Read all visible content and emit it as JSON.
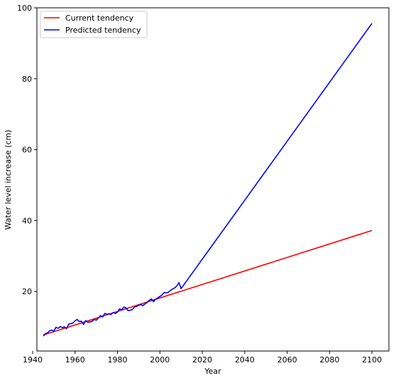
{
  "chart_data": {
    "type": "line",
    "title": "",
    "xlabel": "Year",
    "ylabel": "Water level increase (cm)",
    "xlim": [
      1942,
      2108
    ],
    "ylim": [
      3.2,
      100
    ],
    "xticks": [
      1940,
      1960,
      1980,
      2000,
      2020,
      2040,
      2060,
      2080,
      2100
    ],
    "xtick_labels": [
      "1940",
      "1960",
      "1980",
      "2000",
      "2020",
      "2040",
      "2060",
      "2080",
      "2100"
    ],
    "yticks": [
      20,
      40,
      60,
      80,
      100
    ],
    "ytick_labels": [
      "20",
      "40",
      "60",
      "80",
      "100"
    ],
    "grid": false,
    "legend_position": "top-left",
    "series": [
      {
        "name": "Current tendency",
        "color": "#ff0000",
        "x": [
          1945,
          2100
        ],
        "y": [
          7.7,
          37.2
        ]
      },
      {
        "name": "Predicted tendency",
        "color": "#0000ff",
        "x": [
          1945,
          1946,
          1947,
          1948,
          1949,
          1950,
          1951,
          1952,
          1953,
          1954,
          1955,
          1956,
          1957,
          1958,
          1959,
          1960,
          1961,
          1962,
          1963,
          1964,
          1965,
          1966,
          1967,
          1968,
          1969,
          1970,
          1971,
          1972,
          1973,
          1974,
          1975,
          1976,
          1977,
          1978,
          1979,
          1980,
          1981,
          1982,
          1983,
          1984,
          1985,
          1986,
          1987,
          1988,
          1989,
          1990,
          1991,
          1992,
          1993,
          1994,
          1995,
          1996,
          1997,
          1998,
          1999,
          2000,
          2001,
          2002,
          2003,
          2004,
          2005,
          2006,
          2007,
          2008,
          2009,
          2010,
          2100
        ],
        "y": [
          7.4,
          8.1,
          8.3,
          8.9,
          9.1,
          8.8,
          9.9,
          9.6,
          10.1,
          9.8,
          10.0,
          9.5,
          10.8,
          10.9,
          11.1,
          11.7,
          12.1,
          11.5,
          11.6,
          10.7,
          11.8,
          11.3,
          11.4,
          11.6,
          12.1,
          11.9,
          12.5,
          13.2,
          12.8,
          13.8,
          13.6,
          13.7,
          13.5,
          14.1,
          13.8,
          14.2,
          15.1,
          14.8,
          15.6,
          15.4,
          14.6,
          14.7,
          14.9,
          15.6,
          15.8,
          16.1,
          16.3,
          16.0,
          16.5,
          16.9,
          17.5,
          17.9,
          17.1,
          17.8,
          18.2,
          18.6,
          19.0,
          19.7,
          19.6,
          19.8,
          20.3,
          20.7,
          21.0,
          21.6,
          22.5,
          20.8,
          95.6
        ]
      }
    ]
  }
}
